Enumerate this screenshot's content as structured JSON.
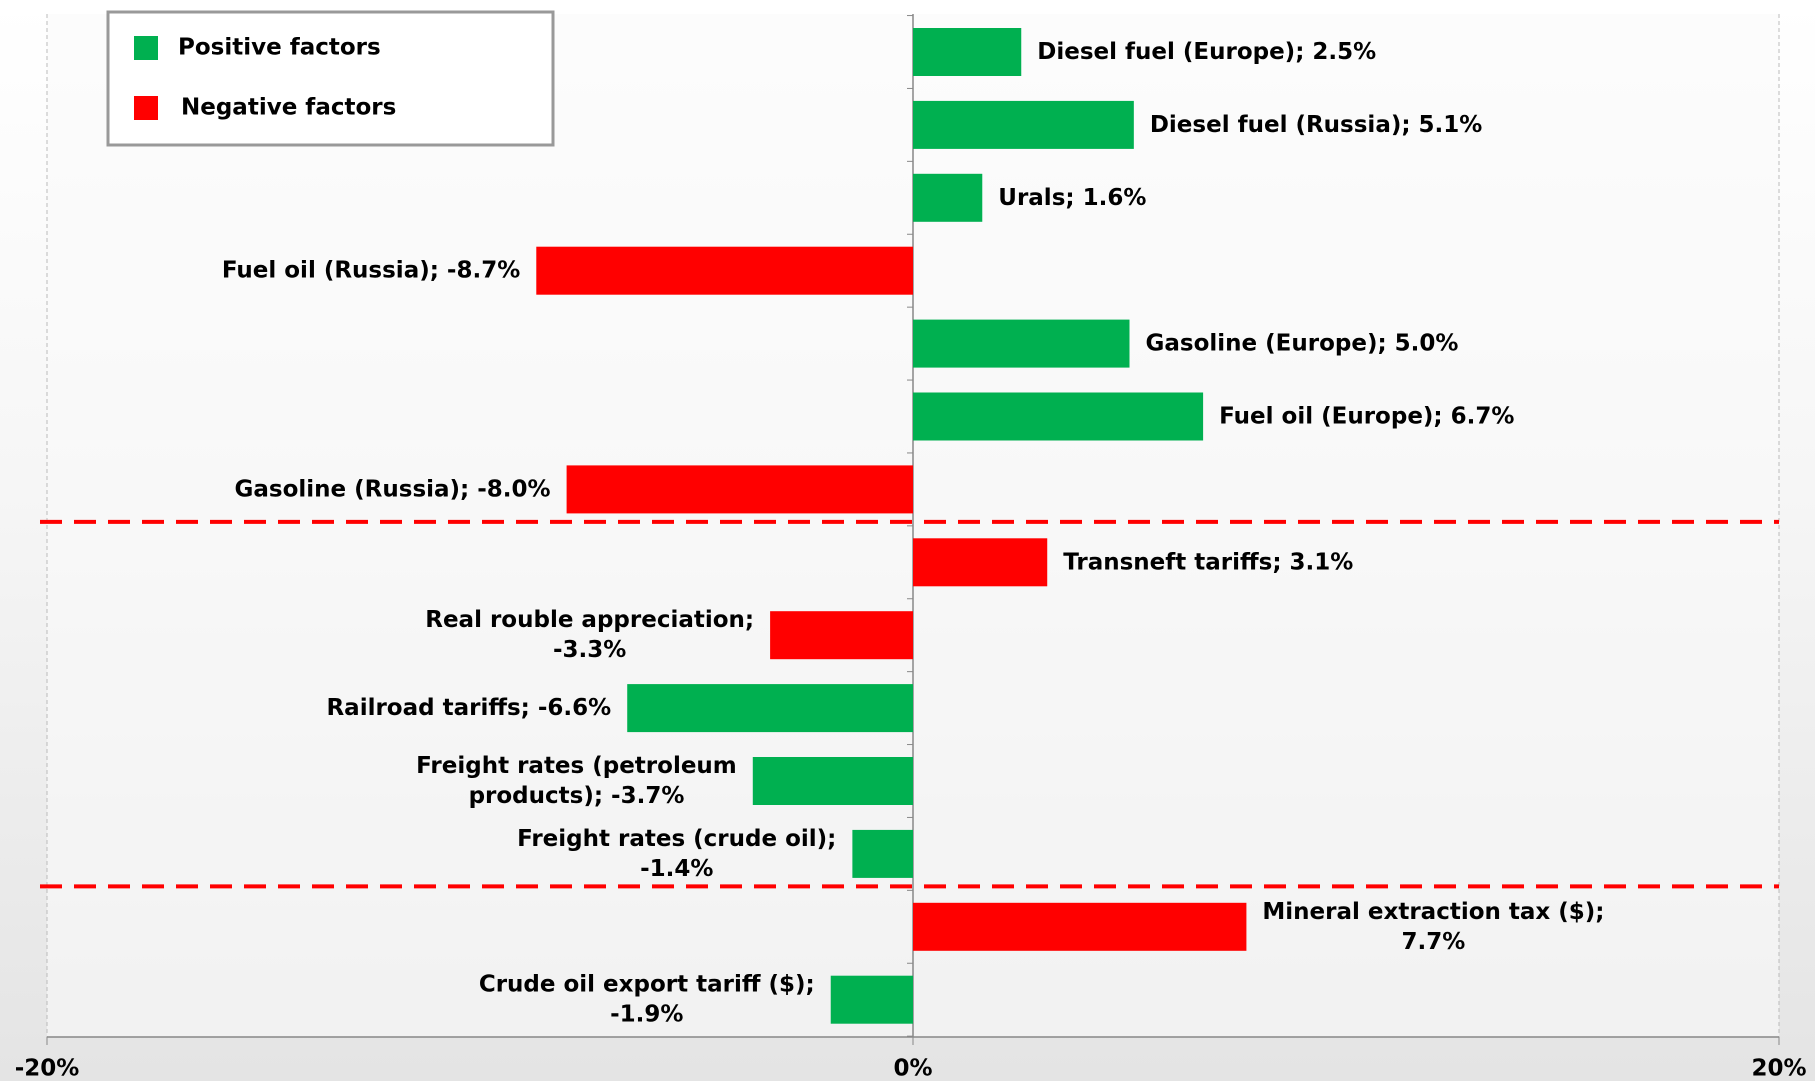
{
  "chart_data": {
    "type": "bar",
    "orientation": "horizontal",
    "series": [
      {
        "name": "Positive factors",
        "color": "#00b050",
        "values": [
          2.5,
          5.1,
          1.6,
          null,
          5.0,
          6.7,
          null,
          null,
          null,
          -6.6,
          -3.7,
          -1.4,
          null,
          -1.9
        ],
        "value_labels": [
          "Diesel fuel (Europe); 2.5%",
          "Diesel fuel (Russia); 5.1%",
          "Urals; 1.6%",
          null,
          "Gasoline (Europe); 5.0%",
          "Fuel oil (Europe); 6.7%",
          null,
          null,
          null,
          "Railroad tariffs; -6.6%",
          "Freight rates (petroleum\nproducts); -3.7%",
          "Freight rates (crude oil);\n-1.4%",
          null,
          "Crude oil export tariff ($);\n-1.9%"
        ]
      },
      {
        "name": "Negative factors",
        "color": "#ff0000",
        "values": [
          null,
          null,
          null,
          -8.7,
          null,
          null,
          -8.0,
          3.1,
          -3.3,
          null,
          null,
          null,
          7.7,
          null
        ],
        "value_labels": [
          null,
          null,
          null,
          "Fuel oil (Russia); -8.7%",
          null,
          null,
          "Gasoline (Russia); -8.0%",
          "Transneft tariffs; 3.1%",
          "Real rouble appreciation;\n-3.3%",
          null,
          null,
          null,
          "Mineral extraction tax ($);\n7.7%",
          null
        ]
      }
    ],
    "xlim": [
      -20,
      20
    ],
    "xticks": [
      {
        "value": -20,
        "label": "-20%"
      },
      {
        "value": 0,
        "label": "0%"
      },
      {
        "value": 20,
        "label": "20%"
      }
    ],
    "grid": true,
    "legend": "upper left"
  }
}
